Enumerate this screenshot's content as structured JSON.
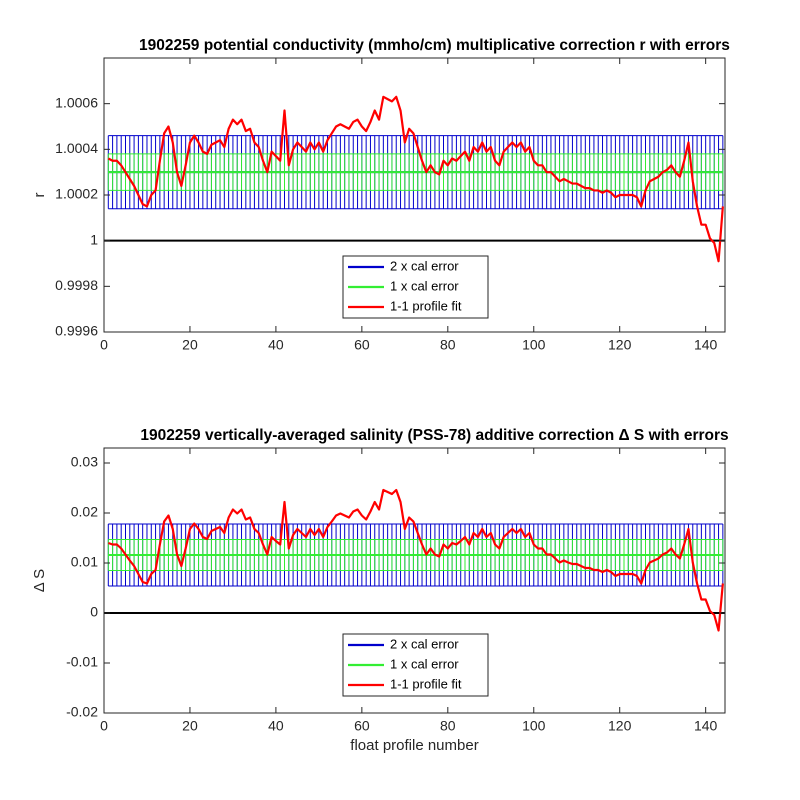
{
  "chart_data": [
    {
      "type": "line",
      "title": "1902259 potential conductivity (mmho/cm) multiplicative correction r with errors",
      "ylabel": "r",
      "xlim": [
        0,
        144.5
      ],
      "xticks": [
        0,
        20,
        40,
        60,
        80,
        100,
        120,
        140
      ],
      "ylim": [
        0.9996,
        1.0008
      ],
      "yticks": [
        0.9996,
        0.9998,
        1,
        1.0002,
        1.0004,
        1.0006
      ],
      "reference_line": 1,
      "legend": "south",
      "x": [
        1,
        2,
        3,
        4,
        5,
        6,
        7,
        8,
        9,
        10,
        11,
        12,
        13,
        14,
        15,
        16,
        17,
        18,
        19,
        20,
        21,
        22,
        23,
        24,
        25,
        26,
        27,
        28,
        29,
        30,
        31,
        32,
        33,
        34,
        35,
        36,
        37,
        38,
        39,
        40,
        41,
        42,
        43,
        44,
        45,
        46,
        47,
        48,
        49,
        50,
        51,
        52,
        53,
        54,
        55,
        56,
        57,
        58,
        59,
        60,
        61,
        62,
        63,
        64,
        65,
        66,
        67,
        68,
        69,
        70,
        71,
        72,
        73,
        74,
        75,
        76,
        77,
        78,
        79,
        80,
        81,
        82,
        83,
        84,
        85,
        86,
        87,
        88,
        89,
        90,
        91,
        92,
        93,
        94,
        95,
        96,
        97,
        98,
        99,
        100,
        101,
        102,
        103,
        104,
        105,
        106,
        107,
        108,
        109,
        110,
        111,
        112,
        113,
        114,
        115,
        116,
        117,
        118,
        119,
        120,
        121,
        122,
        123,
        124,
        125,
        126,
        127,
        128,
        129,
        130,
        131,
        132,
        133,
        134,
        135,
        136,
        137,
        138,
        139,
        140,
        141,
        142,
        143,
        144
      ],
      "series": [
        {
          "name": "2 x cal error",
          "color": "#0000cc",
          "center": 1.0003,
          "error": 0.00016
        },
        {
          "name": "1 x cal error",
          "color": "#33ee33",
          "center": 1.0003,
          "error": 8e-05
        },
        {
          "name": "1-1 profile fit",
          "color": "#ff0000",
          "values": [
            1.00036,
            1.00035,
            1.00035,
            1.00033,
            1.0003,
            1.00027,
            1.00024,
            1.0002,
            1.00016,
            1.00015,
            1.0002,
            1.00022,
            1.00035,
            1.00047,
            1.0005,
            1.00043,
            1.0003,
            1.00024,
            1.00033,
            1.00043,
            1.00046,
            1.00043,
            1.00039,
            1.00038,
            1.00042,
            1.00043,
            1.00044,
            1.00041,
            1.00049,
            1.00053,
            1.00051,
            1.00053,
            1.00048,
            1.00049,
            1.00043,
            1.00041,
            1.00035,
            1.0003,
            1.00039,
            1.00037,
            1.00035,
            1.00057,
            1.00033,
            1.0004,
            1.00043,
            1.00041,
            1.00039,
            1.00043,
            1.0004,
            1.00043,
            1.00039,
            1.00044,
            1.00047,
            1.0005,
            1.00051,
            1.0005,
            1.00049,
            1.00052,
            1.00053,
            1.0005,
            1.00048,
            1.00052,
            1.00057,
            1.00053,
            1.00063,
            1.00062,
            1.00061,
            1.00063,
            1.00057,
            1.00043,
            1.00049,
            1.00047,
            1.00041,
            1.00035,
            1.0003,
            1.00033,
            1.0003,
            1.00029,
            1.00035,
            1.00033,
            1.00036,
            1.00035,
            1.00037,
            1.00039,
            1.00035,
            1.00041,
            1.00039,
            1.00043,
            1.00039,
            1.00041,
            1.00035,
            1.00033,
            1.00039,
            1.00041,
            1.00043,
            1.00041,
            1.00043,
            1.00039,
            1.00041,
            1.00035,
            1.00033,
            1.00033,
            1.0003,
            1.0003,
            1.00028,
            1.00026,
            1.00027,
            1.00026,
            1.00025,
            1.00025,
            1.00024,
            1.00023,
            1.00023,
            1.00022,
            1.00022,
            1.00021,
            1.00022,
            1.00021,
            1.00019,
            1.0002,
            1.0002,
            1.0002,
            1.0002,
            1.00019,
            1.00015,
            1.00022,
            1.00026,
            1.00027,
            1.00028,
            1.0003,
            1.00031,
            1.00033,
            1.0003,
            1.00028,
            1.00035,
            1.00043,
            1.00026,
            1.00015,
            1.00007,
            1.00007,
            1.00001,
            0.99999,
            0.99991,
            1.00015
          ]
        }
      ]
    },
    {
      "type": "line",
      "title": "1902259 vertically-averaged salinity (PSS-78) additive correction Δ S with errors",
      "ylabel": "Δ S",
      "xlabel": "float profile number",
      "xlim": [
        0,
        144.5
      ],
      "xticks": [
        0,
        20,
        40,
        60,
        80,
        100,
        120,
        140
      ],
      "ylim": [
        -0.02,
        0.033
      ],
      "yticks": [
        -0.02,
        -0.01,
        0,
        0.01,
        0.02,
        0.03
      ],
      "reference_line": 0,
      "legend": "south",
      "x": [
        1,
        2,
        3,
        4,
        5,
        6,
        7,
        8,
        9,
        10,
        11,
        12,
        13,
        14,
        15,
        16,
        17,
        18,
        19,
        20,
        21,
        22,
        23,
        24,
        25,
        26,
        27,
        28,
        29,
        30,
        31,
        32,
        33,
        34,
        35,
        36,
        37,
        38,
        39,
        40,
        41,
        42,
        43,
        44,
        45,
        46,
        47,
        48,
        49,
        50,
        51,
        52,
        53,
        54,
        55,
        56,
        57,
        58,
        59,
        60,
        61,
        62,
        63,
        64,
        65,
        66,
        67,
        68,
        69,
        70,
        71,
        72,
        73,
        74,
        75,
        76,
        77,
        78,
        79,
        80,
        81,
        82,
        83,
        84,
        85,
        86,
        87,
        88,
        89,
        90,
        91,
        92,
        93,
        94,
        95,
        96,
        97,
        98,
        99,
        100,
        101,
        102,
        103,
        104,
        105,
        106,
        107,
        108,
        109,
        110,
        111,
        112,
        113,
        114,
        115,
        116,
        117,
        118,
        119,
        120,
        121,
        122,
        123,
        124,
        125,
        126,
        127,
        128,
        129,
        130,
        131,
        132,
        133,
        134,
        135,
        136,
        137,
        138,
        139,
        140,
        141,
        142,
        143,
        144
      ],
      "series": [
        {
          "name": "2 x cal error",
          "color": "#0000cc",
          "center": 0.0116,
          "error": 0.0062
        },
        {
          "name": "1 x cal error",
          "color": "#33ee33",
          "center": 0.0116,
          "error": 0.0031
        },
        {
          "name": "1-1 profile fit",
          "color": "#ff0000",
          "values": [
            0.014,
            0.0137,
            0.0137,
            0.0129,
            0.0117,
            0.0105,
            0.0094,
            0.0078,
            0.0062,
            0.0059,
            0.0078,
            0.0086,
            0.0137,
            0.0183,
            0.0195,
            0.0168,
            0.0117,
            0.0094,
            0.0129,
            0.0168,
            0.0179,
            0.0168,
            0.0152,
            0.0148,
            0.0164,
            0.0168,
            0.0172,
            0.016,
            0.0191,
            0.0207,
            0.0199,
            0.0207,
            0.0187,
            0.0191,
            0.0168,
            0.016,
            0.0137,
            0.0117,
            0.0152,
            0.0144,
            0.0137,
            0.0222,
            0.0129,
            0.0156,
            0.0168,
            0.016,
            0.0152,
            0.0168,
            0.0156,
            0.0168,
            0.0152,
            0.0172,
            0.0183,
            0.0195,
            0.0199,
            0.0195,
            0.0191,
            0.0203,
            0.0207,
            0.0195,
            0.0187,
            0.0203,
            0.0222,
            0.0207,
            0.0246,
            0.0242,
            0.0238,
            0.0246,
            0.0222,
            0.0168,
            0.0191,
            0.0183,
            0.016,
            0.0137,
            0.0117,
            0.0129,
            0.0117,
            0.0113,
            0.0137,
            0.0129,
            0.014,
            0.0137,
            0.0144,
            0.0152,
            0.0137,
            0.016,
            0.0152,
            0.0168,
            0.0152,
            0.016,
            0.0137,
            0.0129,
            0.0152,
            0.016,
            0.0168,
            0.016,
            0.0168,
            0.0152,
            0.016,
            0.0137,
            0.0129,
            0.0129,
            0.0117,
            0.0117,
            0.0109,
            0.0101,
            0.0105,
            0.0101,
            0.0098,
            0.0098,
            0.0094,
            0.009,
            0.009,
            0.0086,
            0.0086,
            0.0082,
            0.0086,
            0.0082,
            0.0074,
            0.0078,
            0.0078,
            0.0078,
            0.0078,
            0.0074,
            0.0059,
            0.0086,
            0.0101,
            0.0105,
            0.0109,
            0.0117,
            0.0121,
            0.0129,
            0.0117,
            0.0109,
            0.0137,
            0.0168,
            0.0101,
            0.0059,
            0.0027,
            0.0027,
            0.0004,
            -0.0004,
            -0.0035,
            0.0059
          ]
        }
      ]
    }
  ]
}
